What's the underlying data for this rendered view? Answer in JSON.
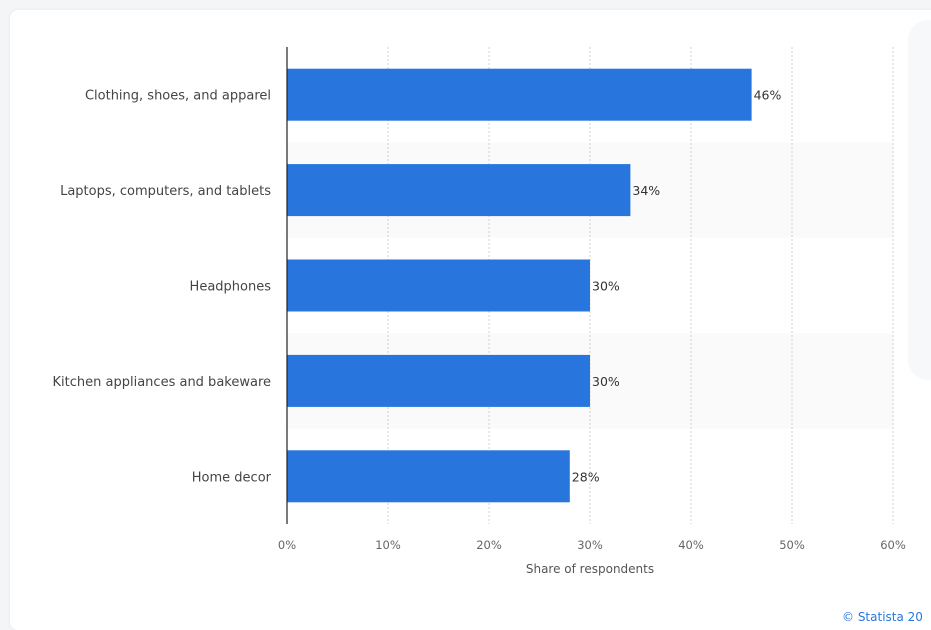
{
  "chart_data": {
    "type": "bar",
    "orientation": "horizontal",
    "categories": [
      "Clothing, shoes, and apparel",
      "Laptops, computers, and tablets",
      "Headphones",
      "Kitchen appliances and bakeware",
      "Home decor"
    ],
    "values": [
      46,
      34,
      30,
      30,
      28
    ],
    "data_labels": [
      "46%",
      "34%",
      "30%",
      "30%",
      "28%"
    ],
    "xlabel": "Share of respondents",
    "ylabel": "",
    "xlim": [
      0,
      60
    ],
    "ticks": [
      "0%",
      "10%",
      "20%",
      "30%",
      "40%",
      "50%",
      "60%"
    ],
    "grid": true,
    "bar_color": "#2876dd"
  },
  "footer": {
    "credit": "© Statista 20"
  }
}
